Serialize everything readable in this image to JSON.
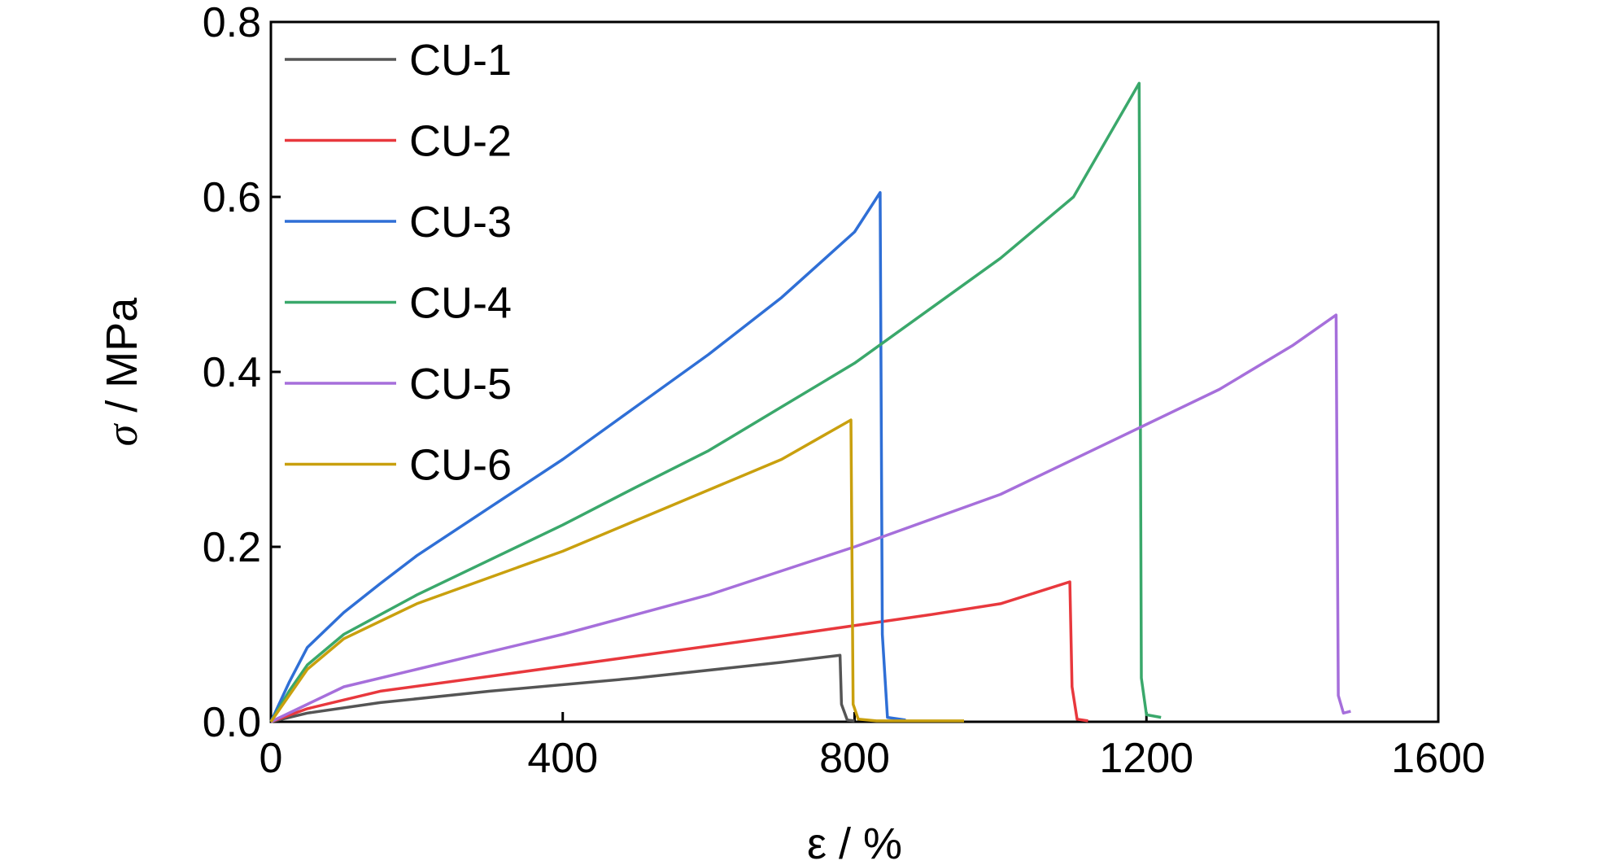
{
  "chart_data": {
    "type": "line",
    "xlabel": "ε / %",
    "ylabel_symbol": "σ",
    "ylabel_unit": " / MPa",
    "xlim": [
      0,
      1600
    ],
    "ylim": [
      0,
      0.8
    ],
    "xticks": [
      "0",
      "400",
      "800",
      "1200",
      "1600"
    ],
    "yticks": [
      "0.0",
      "0.2",
      "0.4",
      "0.6",
      "0.8"
    ],
    "grid": false,
    "legend": "top-left",
    "series": [
      {
        "name": "CU-1",
        "color": "#555555",
        "x": [
          0,
          50,
          150,
          300,
          500,
          700,
          780,
          782,
          790,
          800
        ],
        "y": [
          0,
          0.01,
          0.022,
          0.035,
          0.05,
          0.068,
          0.076,
          0.02,
          0.002,
          0.001
        ]
      },
      {
        "name": "CU-2",
        "color": "#e8383d",
        "x": [
          0,
          50,
          150,
          300,
          500,
          700,
          900,
          1000,
          1095,
          1098,
          1105,
          1120
        ],
        "y": [
          0,
          0.015,
          0.035,
          0.052,
          0.075,
          0.098,
          0.122,
          0.135,
          0.16,
          0.04,
          0.003,
          0.001
        ]
      },
      {
        "name": "CU-3",
        "color": "#2f6fd6",
        "x": [
          0,
          25,
          50,
          100,
          150,
          200,
          300,
          400,
          500,
          600,
          700,
          800,
          835,
          838,
          845,
          870
        ],
        "y": [
          0,
          0.045,
          0.085,
          0.125,
          0.158,
          0.19,
          0.245,
          0.3,
          0.36,
          0.42,
          0.485,
          0.56,
          0.605,
          0.1,
          0.005,
          0.002
        ]
      },
      {
        "name": "CU-4",
        "color": "#3aa86b",
        "x": [
          0,
          25,
          50,
          100,
          200,
          300,
          400,
          500,
          600,
          700,
          800,
          900,
          1000,
          1100,
          1190,
          1193,
          1200,
          1220
        ],
        "y": [
          0,
          0.035,
          0.065,
          0.1,
          0.145,
          0.185,
          0.225,
          0.268,
          0.31,
          0.36,
          0.41,
          0.47,
          0.53,
          0.6,
          0.73,
          0.05,
          0.008,
          0.005
        ]
      },
      {
        "name": "CU-5",
        "color": "#a66fdb",
        "x": [
          0,
          50,
          100,
          200,
          400,
          600,
          800,
          1000,
          1200,
          1300,
          1400,
          1460,
          1463,
          1470,
          1480
        ],
        "y": [
          0,
          0.02,
          0.04,
          0.06,
          0.1,
          0.145,
          0.2,
          0.26,
          0.34,
          0.38,
          0.43,
          0.465,
          0.03,
          0.01,
          0.012
        ]
      },
      {
        "name": "CU-6",
        "color": "#c9a00e",
        "x": [
          0,
          25,
          50,
          100,
          200,
          300,
          400,
          500,
          600,
          700,
          795,
          798,
          805,
          830,
          950
        ],
        "y": [
          0,
          0.03,
          0.06,
          0.095,
          0.135,
          0.165,
          0.195,
          0.23,
          0.265,
          0.3,
          0.345,
          0.02,
          0.003,
          0.001,
          0.001
        ]
      }
    ]
  }
}
